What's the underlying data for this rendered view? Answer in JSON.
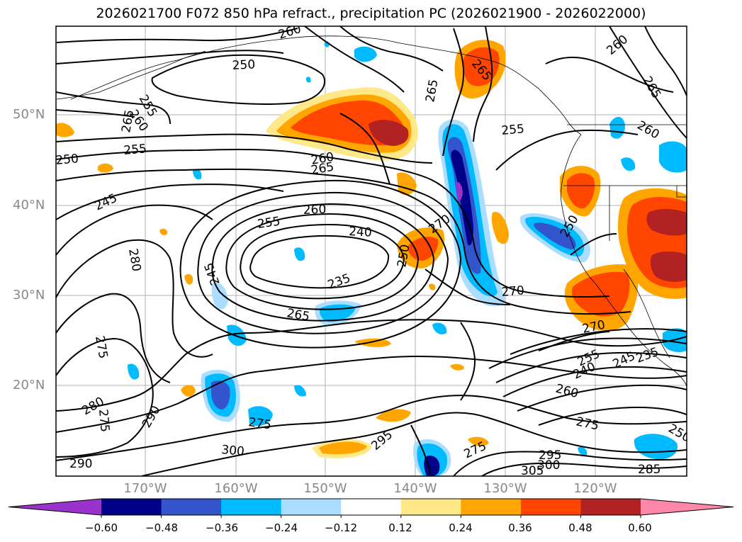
{
  "title": "2026021700 F072 850 hPa refract., precipitation PC (2026021900 - 2026022000)",
  "lat_labels": [
    "50°N",
    "40°N",
    "30°N",
    "20°N"
  ],
  "lon_labels": [
    "170°W",
    "160°W",
    "150°W",
    "140°W",
    "130°W",
    "120°W"
  ],
  "colorbar": {
    "tick_labels": [
      "−0.60",
      "−0.48",
      "−0.36",
      "−0.24",
      "−0.12",
      "0.12",
      "0.24",
      "0.36",
      "0.48",
      "0.60"
    ],
    "colors": [
      "#9933cc",
      "#000088",
      "#3355cc",
      "#00bbff",
      "#aaddff",
      "#ffffff",
      "#ffe888",
      "#ffa500",
      "#ff4500",
      "#b22222",
      "#ff88aa"
    ]
  },
  "contour_labels": [
    "260",
    "250",
    "255",
    "260",
    "265",
    "255",
    "250",
    "245",
    "260",
    "265",
    "255",
    "260",
    "240",
    "270",
    "250",
    "235",
    "245",
    "280",
    "265",
    "265",
    "265",
    "255",
    "260",
    "260",
    "265",
    "250",
    "270",
    "270",
    "275",
    "280",
    "275",
    "290",
    "275",
    "300",
    "295",
    "275",
    "290",
    "305",
    "300",
    "285",
    "295",
    "255",
    "240",
    "245",
    "235",
    "260",
    "275",
    "250"
  ]
}
